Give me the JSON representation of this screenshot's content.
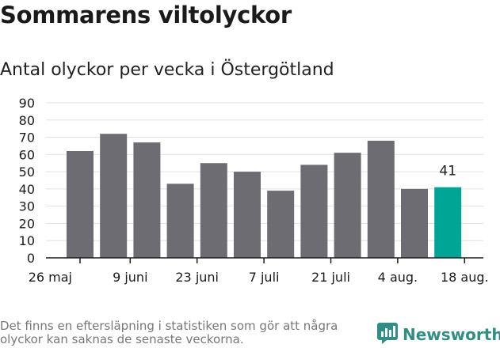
{
  "title": "Sommarens viltolyckor",
  "subtitle": "Antal olyckor per vecka i Östergötland",
  "footnote": "Det finns en eftersläpning i statistiken som gör att några olyckor kan saknas de senaste veckorna.",
  "brand": {
    "name": "Newsworthy",
    "icon": "newsworthy-logo-icon"
  },
  "colors": {
    "bar": "#6d6c72",
    "highlight": "#00a596",
    "grid": "#e2e2e2",
    "axis": "#1a1a1a"
  },
  "chart_data": {
    "type": "bar",
    "values": [
      62,
      72,
      67,
      43,
      55,
      50,
      39,
      54,
      61,
      68,
      40,
      41
    ],
    "highlight_index": 11,
    "data_labels": [
      {
        "index": 11,
        "text": "41"
      }
    ],
    "x_tick_labels": [
      {
        "index": 0,
        "text": "26 maj"
      },
      {
        "index": 1.5,
        "text": "9 juni"
      },
      {
        "index": 3.5,
        "text": "23 juni"
      },
      {
        "index": 5.5,
        "text": "7 juli"
      },
      {
        "index": 7.5,
        "text": "21 juli"
      },
      {
        "index": 9.5,
        "text": "4 aug."
      },
      {
        "index": 11.5,
        "text": "18 aug."
      }
    ],
    "yticks": [
      0,
      10,
      20,
      30,
      40,
      50,
      60,
      70,
      80,
      90
    ],
    "ylim": [
      0,
      90
    ],
    "grid": true,
    "xlabel": "",
    "ylabel": ""
  }
}
